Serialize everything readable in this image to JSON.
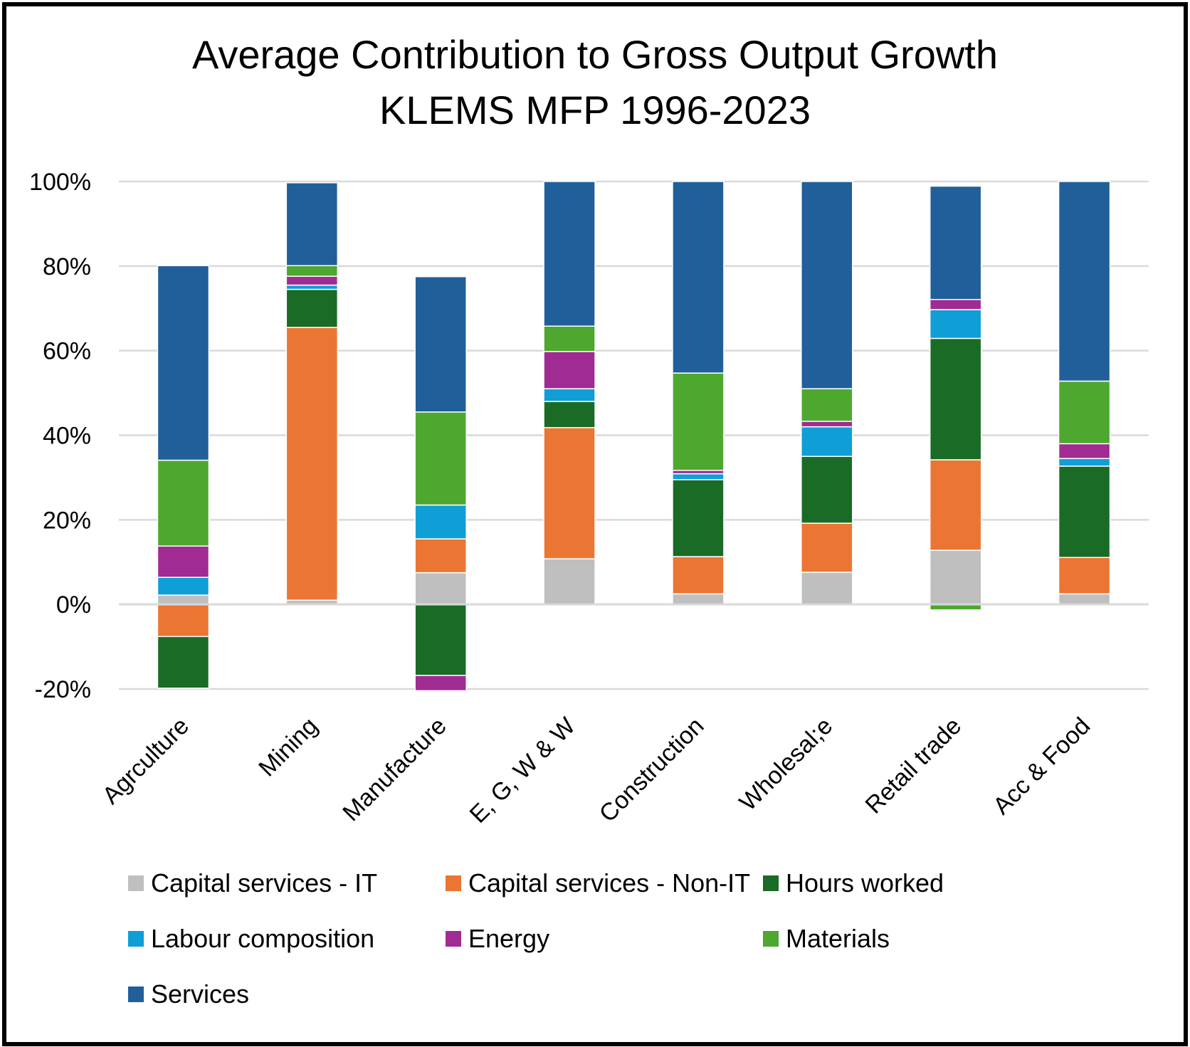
{
  "chart_data": {
    "type": "bar",
    "stacked": true,
    "title": [
      "Average Contribution to Gross Output Growth",
      "KLEMS MFP 1996-2023"
    ],
    "categories": [
      "Agrculture",
      "Mining",
      "Manufacture",
      "E, G, W & W",
      "Construction",
      "Wholesal;e",
      "Retail trade",
      "Acc & Food"
    ],
    "ylim": [
      -20,
      100
    ],
    "yticks": [
      -20,
      0,
      20,
      40,
      60,
      80,
      100
    ],
    "ytick_labels": [
      "-20%",
      "0%",
      "20%",
      "40%",
      "60%",
      "80%",
      "100%"
    ],
    "grid": true,
    "legend_position": "bottom",
    "series": [
      {
        "name": "Capital services - IT",
        "color": "#BFBFBF",
        "values": [
          2.2,
          1.0,
          7.5,
          10.8,
          2.5,
          7.6,
          12.8,
          2.5
        ]
      },
      {
        "name": "Capital services - Non-IT",
        "color": "#EB7533",
        "values": [
          -7.6,
          64.5,
          8.0,
          31.0,
          8.8,
          11.6,
          21.4,
          8.6
        ]
      },
      {
        "name": "Hours worked",
        "color": "#1A6B26",
        "values": [
          -12.2,
          9.0,
          -16.8,
          6.2,
          18.2,
          15.8,
          28.7,
          21.6
        ]
      },
      {
        "name": "Labour composition",
        "color": "#0F9ED5",
        "values": [
          4.2,
          1.0,
          8.0,
          3.0,
          1.4,
          7.0,
          6.8,
          1.8
        ]
      },
      {
        "name": "Energy",
        "color": "#A02B93",
        "values": [
          7.4,
          2.1,
          -3.6,
          8.8,
          0.8,
          1.3,
          2.4,
          3.5
        ]
      },
      {
        "name": "Materials",
        "color": "#4EA72E",
        "values": [
          20.3,
          2.5,
          22.0,
          6.0,
          23.0,
          7.7,
          -1.3,
          14.8
        ]
      },
      {
        "name": "Services",
        "color": "#215F9A",
        "values": [
          46.0,
          19.6,
          32.0,
          34.2,
          45.3,
          49.0,
          26.8,
          47.2
        ]
      }
    ]
  }
}
